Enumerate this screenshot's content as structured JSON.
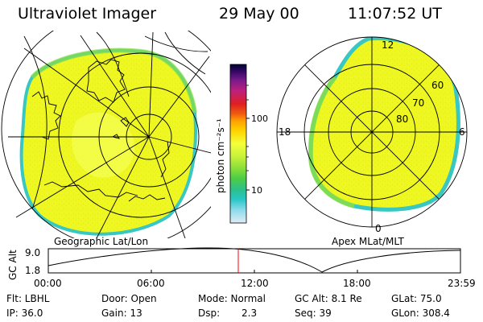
{
  "header": {
    "instrument": "Ultraviolet Imager",
    "date": "29 May 00",
    "time": "11:07:52 UT"
  },
  "left_panel": {
    "caption": "Geographic Lat/Lon"
  },
  "right_panel": {
    "caption": "Apex MLat/MLT",
    "mlt_labels": [
      "12",
      "18",
      "6",
      "0"
    ],
    "mlat_labels": [
      "60",
      "70",
      "80"
    ]
  },
  "colorbar": {
    "unit_label": "photon cm⁻²s⁻¹",
    "tick_labels": [
      "100",
      "10"
    ],
    "colors": [
      "#000033",
      "#3a0a6a",
      "#7a1a8a",
      "#c0207a",
      "#e02020",
      "#f05a10",
      "#ffa500",
      "#ffd400",
      "#f4ff3a",
      "#c8f23a",
      "#8ee03a",
      "#4ccc46",
      "#2cc08c",
      "#28c6c6",
      "#8fdcec",
      "#e0ecf4"
    ]
  },
  "timeline": {
    "axis_label": "GC Alt",
    "y_ticks": [
      "9.0",
      "1.8"
    ],
    "x_ticks": [
      "00:00",
      "06:00",
      "12:00",
      "18:00",
      "23:59"
    ],
    "marker_color": "#ff0000",
    "curve_color": "#000000"
  },
  "status": {
    "flt": "Flt: LBHL",
    "ip": "IP: 36.0",
    "door": "Door: Open",
    "gain": "Gain: 13",
    "mode": "Mode: Normal",
    "dsp_label": "Dsp:",
    "dsp_value": "2.3",
    "gc_alt": "GC Alt: 8.1 Re",
    "seq": "Seq: 39",
    "glat": "GLat: 75.0",
    "glon": "GLon: 308.4"
  }
}
